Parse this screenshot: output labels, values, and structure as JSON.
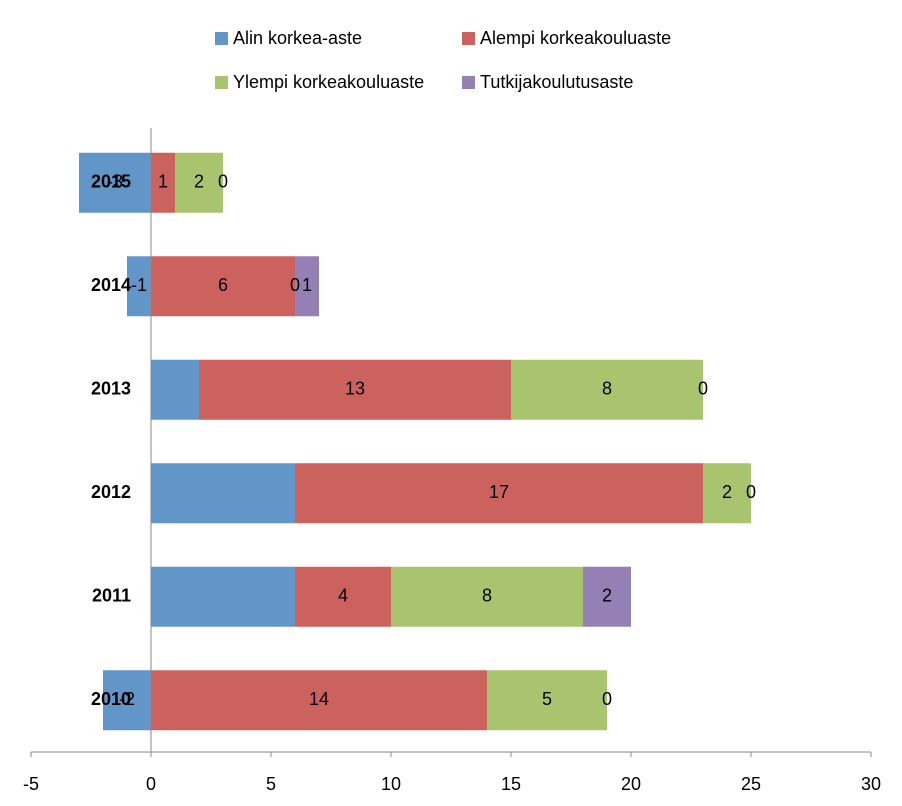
{
  "chart_data": {
    "type": "stacked_bar_horizontal",
    "categories": [
      "2015",
      "2014",
      "2013",
      "2012",
      "2011",
      "2010"
    ],
    "series": [
      {
        "name": "Alin korkea-aste",
        "color": "#6396c8",
        "values": [
          -3,
          -1,
          2,
          6,
          6,
          -2
        ],
        "value_labels": [
          "-3",
          "-1",
          null,
          null,
          null,
          "-2"
        ]
      },
      {
        "name": "Alempi korkeakouluaste",
        "color": "#cc625e",
        "values": [
          1,
          6,
          13,
          17,
          4,
          14
        ]
      },
      {
        "name": "Ylempi korkeakouluaste",
        "color": "#a9c46f",
        "values": [
          2,
          0,
          8,
          2,
          8,
          5
        ]
      },
      {
        "name": "Tutkijakoulutusaste",
        "color": "#9580b6",
        "values": [
          0,
          1,
          0,
          0,
          2,
          0
        ]
      }
    ],
    "xlim": [
      -5,
      30
    ],
    "xticks": [
      -5,
      0,
      5,
      10,
      15,
      20,
      25,
      30
    ],
    "grid": false,
    "legend": "top"
  }
}
